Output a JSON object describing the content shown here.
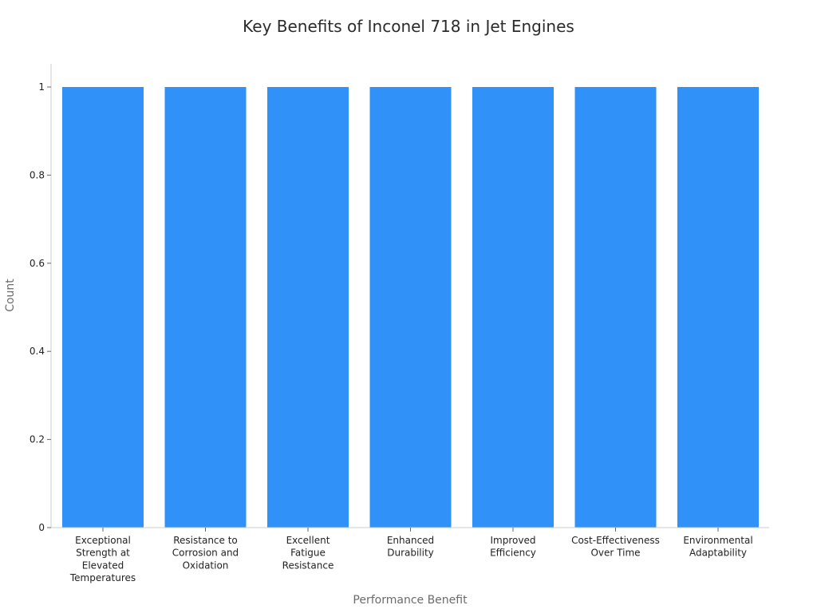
{
  "chart_data": {
    "type": "bar",
    "title": "Key Benefits of Inconel 718 in Jet Engines",
    "xlabel": "Performance Benefit",
    "ylabel": "Count",
    "categories": [
      "Exceptional Strength at Elevated Temperatures",
      "Resistance to Corrosion and Oxidation",
      "Excellent Fatigue Resistance",
      "Enhanced Durability",
      "Improved Efficiency",
      "Cost-Effectiveness Over Time",
      "Environmental Adaptability"
    ],
    "category_lines": [
      [
        "Exceptional",
        "Strength at",
        "Elevated",
        "Temperatures"
      ],
      [
        "Resistance to",
        "Corrosion and",
        "Oxidation"
      ],
      [
        "Excellent",
        "Fatigue",
        "Resistance"
      ],
      [
        "Enhanced",
        "Durability"
      ],
      [
        "Improved",
        "Efficiency"
      ],
      [
        "Cost-Effectiveness",
        "Over Time"
      ],
      [
        "Environmental",
        "Adaptability"
      ]
    ],
    "values": [
      1,
      1,
      1,
      1,
      1,
      1,
      1
    ],
    "yticks": [
      0,
      0.2,
      0.4,
      0.6,
      0.8,
      1
    ],
    "ytick_labels": [
      "0",
      "0.2",
      "0.4",
      "0.6",
      "0.8",
      "1"
    ],
    "ylim": [
      0,
      1.05
    ],
    "bar_color": "#3092f8",
    "grid": false,
    "legend": "none"
  }
}
